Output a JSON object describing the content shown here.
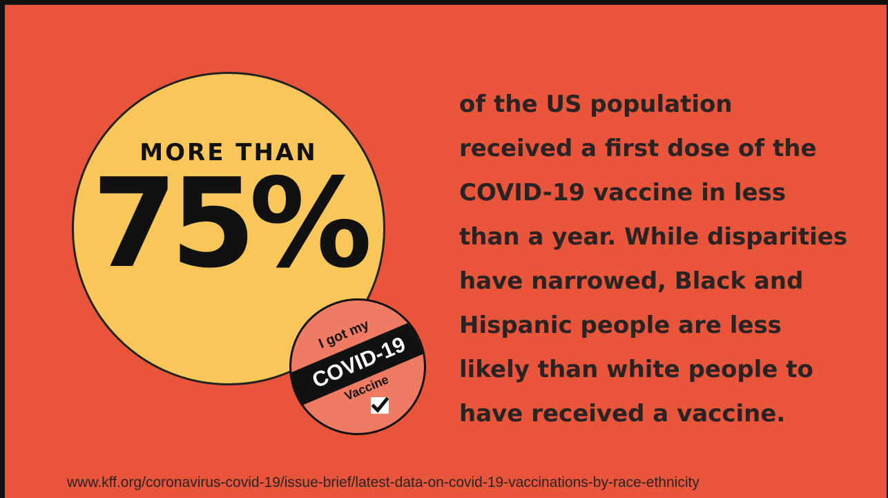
{
  "stat": {
    "prefix": "MORE THAN",
    "value": "75%"
  },
  "sticker": {
    "top_text": "I got my",
    "band_text": "COVID-19",
    "bottom_text": "Vaccine",
    "icon": "checkbox-check-icon"
  },
  "body": {
    "lines": [
      "of the US population",
      "received a first dose of the",
      "COVID-19 vaccine in less",
      "than a year. While disparities",
      "have narrowed, Black and",
      "Hispanic people are less",
      "likely than white people to",
      "have received a vaccine."
    ]
  },
  "source": {
    "url_text": "www.kff.org/coronavirus-covid-19/issue-brief/latest-data-on-covid-19-vaccinations-by-race-ethnicity"
  },
  "colors": {
    "background": "#e8553a",
    "stat_circle": "#f9c65a",
    "sticker": "#ee7b62",
    "text_dark": "#2a2323"
  }
}
